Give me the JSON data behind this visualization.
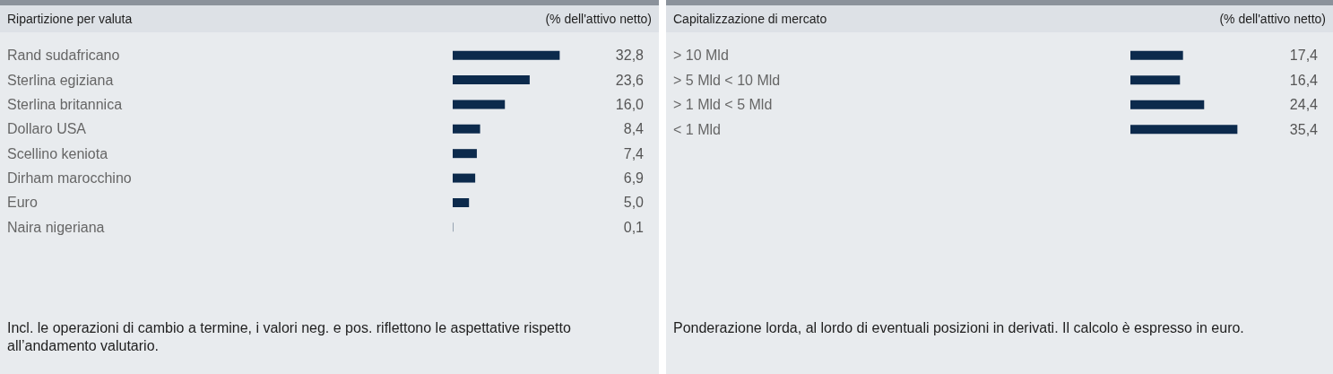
{
  "chart_data": [
    {
      "type": "bar",
      "orientation": "horizontal",
      "title": "Ripartizione per valuta",
      "subtitle": "(% dell'attivo netto)",
      "tick_labels": "y",
      "data_labels": true,
      "color": "#0c2a4c",
      "categories": [
        "Rand sudafricano",
        "Sterlina egiziana",
        "Sterlina britannica",
        "Dollaro USA",
        "Scellino keniota",
        "Dirham marocchino",
        "Euro",
        "Naira nigeriana"
      ],
      "values": [
        32.8,
        23.6,
        16.0,
        8.4,
        7.4,
        6.9,
        5.0,
        0.1
      ],
      "value_labels": [
        "32,8",
        "23,6",
        "16,0",
        "8,4",
        "7,4",
        "6,9",
        "5,0",
        "0,1"
      ],
      "annotations": [
        "Incl. le operazioni di cambio a termine, i valori neg. e pos. riflettono le aspettative rispetto all’andamento valutario."
      ]
    },
    {
      "type": "bar",
      "orientation": "horizontal",
      "title": "Capitalizzazione di mercato",
      "subtitle": "(% dell'attivo netto)",
      "tick_labels": "y",
      "data_labels": true,
      "color": "#0c2a4c",
      "categories": [
        "> 10 Mld",
        "> 5 Mld < 10 Mld",
        "> 1 Mld < 5 Mld",
        "< 1 Mld"
      ],
      "values": [
        17.4,
        16.4,
        24.4,
        35.4
      ],
      "value_labels": [
        "17,4",
        "16,4",
        "24,4",
        "35,4"
      ],
      "annotations": [
        "Ponderazione lorda, al lordo di eventuali posizioni in derivati. Il calcolo è espresso in euro."
      ]
    }
  ]
}
